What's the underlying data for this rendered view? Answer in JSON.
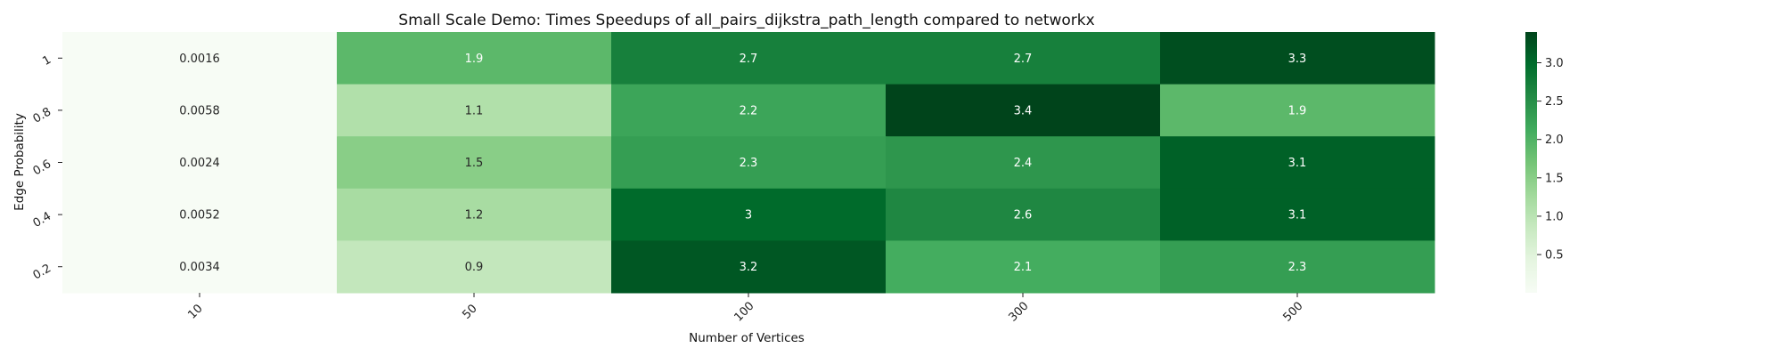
{
  "chart_data": {
    "type": "heatmap",
    "title": "Small Scale Demo: Times Speedups of all_pairs_dijkstra_path_length compared to networkx",
    "xlabel": "Number of Vertices",
    "ylabel": "Edge Probability",
    "x_categories": [
      "10",
      "50",
      "100",
      "300",
      "500"
    ],
    "y_categories": [
      "1",
      "0.8",
      "0.6",
      "0.4",
      "0.2"
    ],
    "values": [
      [
        0.0016,
        1.9,
        2.7,
        2.7,
        3.3
      ],
      [
        0.0058,
        1.1,
        2.2,
        3.4,
        1.9
      ],
      [
        0.0024,
        1.5,
        2.3,
        2.4,
        3.1
      ],
      [
        0.0052,
        1.2,
        3.0,
        2.6,
        3.1
      ],
      [
        0.0034,
        0.9,
        3.2,
        2.1,
        2.3
      ]
    ],
    "cell_labels": [
      [
        "0.0016",
        "1.9",
        "2.7",
        "2.7",
        "3.3"
      ],
      [
        "0.0058",
        "1.1",
        "2.2",
        "3.4",
        "1.9"
      ],
      [
        "0.0024",
        "1.5",
        "2.3",
        "2.4",
        "3.1"
      ],
      [
        "0.0052",
        "1.2",
        "3",
        "2.6",
        "3.1"
      ],
      [
        "0.0034",
        "0.9",
        "3.2",
        "2.1",
        "2.3"
      ]
    ],
    "colormap": "Greens",
    "colorbar": {
      "range": [
        0.0016,
        3.4
      ],
      "ticks": [
        0.5,
        1.0,
        1.5,
        2.0,
        2.5,
        3.0
      ],
      "tick_labels": [
        "0.5",
        "1.0",
        "1.5",
        "2.0",
        "2.5",
        "3.0"
      ]
    },
    "grid": false,
    "legend": "colorbar-right"
  }
}
